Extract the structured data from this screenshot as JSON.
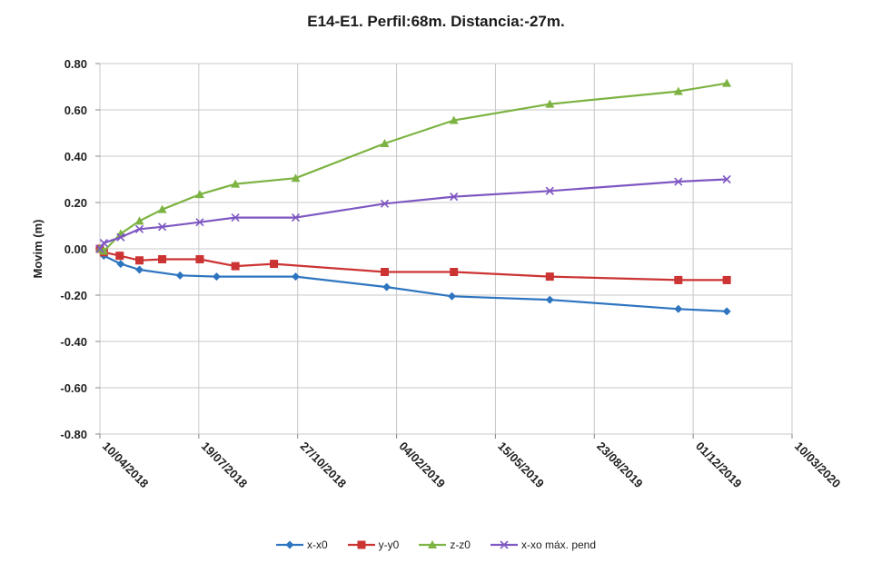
{
  "chart_data": {
    "type": "line",
    "title": "E14-E1. Perfil:68m. Distancia:-27m.",
    "xlabel": "",
    "ylabel": "Movim (m)",
    "ylim": [
      -0.8,
      0.8
    ],
    "yticks": [
      0.8,
      0.6,
      0.4,
      0.2,
      0.0,
      -0.2,
      -0.4,
      -0.6,
      -0.8
    ],
    "ytick_labels": [
      "0.80",
      "0.60",
      "0.40",
      "0.20",
      "0.00",
      "-0.20",
      "-0.40",
      "-0.60",
      "-0.80"
    ],
    "xlim": [
      "2018-04-10",
      "2020-03-10"
    ],
    "xticks": [
      "2018-04-10",
      "2018-07-19",
      "2018-10-27",
      "2019-02-04",
      "2019-05-15",
      "2019-08-23",
      "2019-12-01",
      "2020-03-10"
    ],
    "xtick_labels": [
      "10/04/2018",
      "19/07/2018",
      "27/10/2018",
      "04/02/2019",
      "15/05/2019",
      "23/08/2019",
      "01/12/2019",
      "10/03/2020"
    ],
    "grid": true,
    "legend_position": "bottom",
    "series": [
      {
        "name": "x-x0",
        "color": "#2e75c0",
        "marker": "diamond",
        "x": [
          "2018-04-10",
          "2018-04-14",
          "2018-05-01",
          "2018-05-20",
          "2018-06-30",
          "2018-08-06",
          "2018-10-25",
          "2019-01-25",
          "2019-04-01",
          "2019-07-09",
          "2019-11-16",
          "2020-01-04"
        ],
        "y": [
          0.0,
          -0.03,
          -0.065,
          -0.09,
          -0.115,
          -0.12,
          -0.12,
          -0.165,
          -0.205,
          -0.22,
          -0.26,
          -0.27
        ]
      },
      {
        "name": "y-y0",
        "color": "#cc3333",
        "marker": "square",
        "x": [
          "2018-04-10",
          "2018-04-14",
          "2018-04-30",
          "2018-05-20",
          "2018-06-12",
          "2018-07-20",
          "2018-08-25",
          "2018-10-03",
          "2019-01-23",
          "2019-04-03",
          "2019-07-09",
          "2019-11-16",
          "2020-01-04"
        ],
        "y": [
          0.0,
          -0.015,
          -0.03,
          -0.05,
          -0.045,
          -0.045,
          -0.075,
          -0.065,
          -0.1,
          -0.1,
          -0.12,
          -0.135,
          -0.135
        ]
      },
      {
        "name": "z-z0",
        "color": "#7cb342",
        "marker": "triangle",
        "x": [
          "2018-04-10",
          "2018-04-14",
          "2018-05-01",
          "2018-05-20",
          "2018-06-12",
          "2018-07-20",
          "2018-08-25",
          "2018-10-25",
          "2019-01-23",
          "2019-04-03",
          "2019-07-09",
          "2019-11-16",
          "2020-01-04"
        ],
        "y": [
          0.0,
          -0.01,
          0.065,
          0.12,
          0.17,
          0.235,
          0.28,
          0.305,
          0.455,
          0.555,
          0.625,
          0.68,
          0.715
        ]
      },
      {
        "name": "x-xo máx. pend",
        "color": "#7e57c2",
        "marker": "x",
        "x": [
          "2018-04-10",
          "2018-04-14",
          "2018-05-01",
          "2018-05-20",
          "2018-06-12",
          "2018-07-20",
          "2018-08-25",
          "2018-10-25",
          "2019-01-23",
          "2019-04-03",
          "2019-07-09",
          "2019-11-16",
          "2020-01-04"
        ],
        "y": [
          0.0,
          0.025,
          0.05,
          0.085,
          0.095,
          0.115,
          0.135,
          0.135,
          0.195,
          0.225,
          0.25,
          0.29,
          0.3
        ]
      }
    ]
  }
}
